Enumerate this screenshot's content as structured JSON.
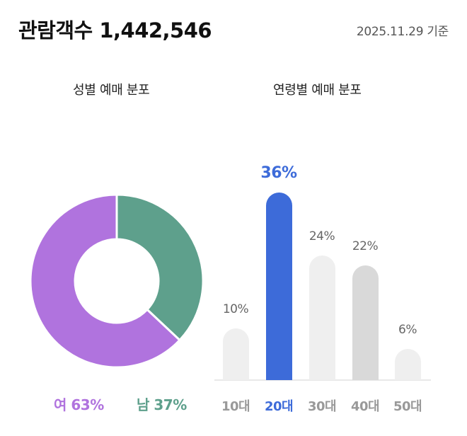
{
  "header": {
    "title": "관람객수 1,442,546",
    "date": "2025.11.29 기준"
  },
  "gender_section": {
    "title": "성별 예매 분포",
    "legend": [
      {
        "label": "여 63%",
        "color": "#b073de"
      },
      {
        "label": "남 37%",
        "color": "#5ea08c"
      }
    ]
  },
  "age_section": {
    "title": "연령별 예매 분포",
    "bars": [
      {
        "category": "10대",
        "value_label": "10%",
        "color": "#efefef",
        "highlight": false
      },
      {
        "category": "20대",
        "value_label": "36%",
        "color": "#3d6bd9",
        "highlight": true
      },
      {
        "category": "30대",
        "value_label": "24%",
        "color": "#efefef",
        "highlight": false
      },
      {
        "category": "40대",
        "value_label": "22%",
        "color": "#d9d9d9",
        "highlight": false
      },
      {
        "category": "50대",
        "value_label": "6%",
        "color": "#efefef",
        "highlight": false
      }
    ]
  },
  "chart_data": [
    {
      "type": "pie",
      "title": "성별 예매 분포",
      "categories": [
        "여",
        "남"
      ],
      "values": [
        63,
        37
      ],
      "colors": [
        "#b073de",
        "#5ea08c"
      ],
      "donut": true,
      "legend_position": "bottom"
    },
    {
      "type": "bar",
      "title": "연령별 예매 분포",
      "categories": [
        "10대",
        "20대",
        "30대",
        "40대",
        "50대"
      ],
      "values": [
        10,
        36,
        24,
        22,
        6
      ],
      "unit": "%",
      "highlighted_category": "20대",
      "colors": [
        "#efefef",
        "#3d6bd9",
        "#efefef",
        "#d9d9d9",
        "#efefef"
      ],
      "xlabel": "",
      "ylabel": "",
      "grid": false,
      "data_labels": true
    }
  ],
  "icons": {},
  "accent_color": "#3d6bd9"
}
